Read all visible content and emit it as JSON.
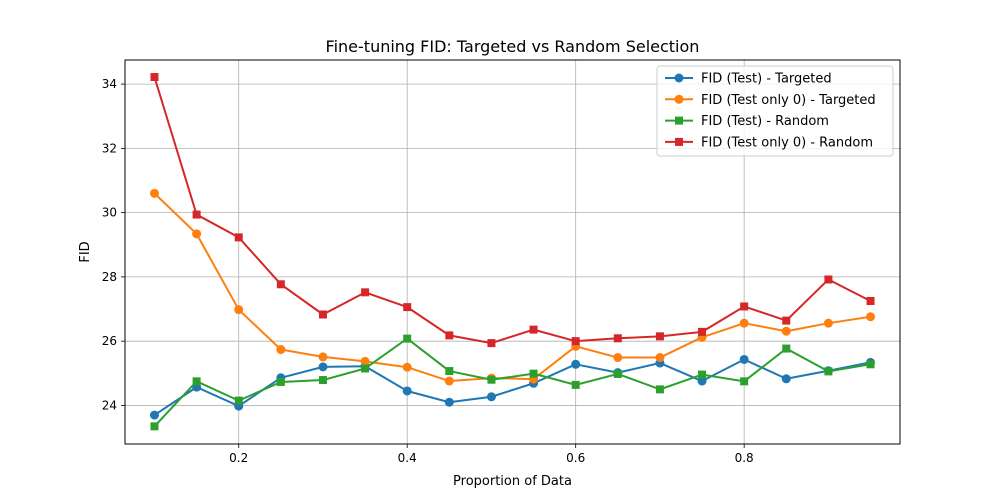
{
  "chart_data": {
    "type": "line",
    "title": "Fine-tuning FID: Targeted vs Random Selection",
    "xlabel": "Proportion of Data",
    "ylabel": "FID",
    "xlim": [
      0.065,
      0.985
    ],
    "ylim": [
      22.8,
      34.75
    ],
    "xticks": [
      0.2,
      0.4,
      0.6,
      0.8
    ],
    "xtick_labels": [
      "0.2",
      "0.4",
      "0.6",
      "0.8"
    ],
    "yticks": [
      24,
      26,
      28,
      30,
      32,
      34
    ],
    "ytick_labels": [
      "24",
      "26",
      "28",
      "30",
      "32",
      "34"
    ],
    "grid": true,
    "legend_position": "top-right",
    "x": [
      0.1,
      0.15,
      0.2,
      0.25,
      0.3,
      0.35,
      0.4,
      0.45,
      0.5,
      0.55,
      0.6,
      0.65,
      0.7,
      0.75,
      0.8,
      0.85,
      0.9,
      0.95
    ],
    "series": [
      {
        "name": "FID (Test) - Targeted",
        "color": "#1f77b4",
        "marker": "circle",
        "values": [
          23.7,
          24.57,
          23.98,
          24.86,
          25.2,
          25.22,
          24.45,
          24.1,
          24.27,
          24.69,
          25.28,
          25.02,
          25.32,
          24.76,
          25.43,
          24.83,
          25.08,
          25.34
        ]
      },
      {
        "name": "FID (Test only 0) - Targeted",
        "color": "#ff7f0e",
        "marker": "circle",
        "values": [
          30.6,
          29.34,
          26.98,
          25.74,
          25.51,
          25.37,
          25.19,
          24.76,
          24.85,
          24.82,
          25.84,
          25.49,
          25.49,
          26.12,
          26.56,
          26.31,
          26.56,
          26.76
        ]
      },
      {
        "name": "FID (Test) - Random",
        "color": "#2ca02c",
        "marker": "square",
        "values": [
          23.35,
          24.75,
          24.15,
          24.73,
          24.79,
          25.15,
          26.08,
          25.07,
          24.8,
          24.99,
          24.64,
          24.98,
          24.5,
          24.96,
          24.75,
          25.77,
          25.06,
          25.28
        ]
      },
      {
        "name": "FID (Test only 0) - Random",
        "color": "#d62728",
        "marker": "square",
        "values": [
          34.22,
          29.94,
          29.23,
          27.77,
          26.83,
          27.52,
          27.06,
          26.18,
          25.94,
          26.36,
          26.0,
          26.09,
          26.15,
          26.29,
          27.08,
          26.64,
          27.92,
          27.25
        ]
      }
    ]
  }
}
